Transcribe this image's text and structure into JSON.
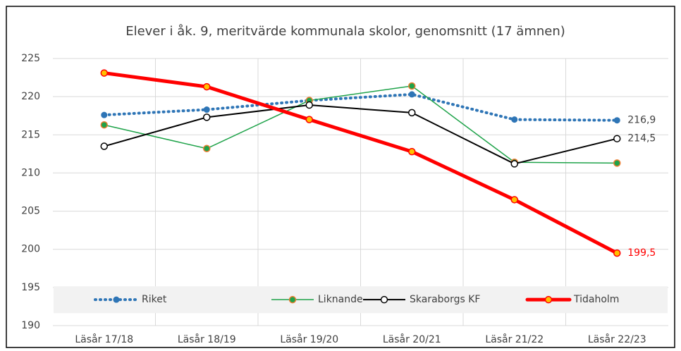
{
  "chart_data": {
    "type": "line",
    "title": "Elever i åk. 9, meritvärde kommunala skolor, genomsnitt (17 ämnen)",
    "categories": [
      "Läsår 17/18",
      "Läsår 18/19",
      "Läsår 19/20",
      "Läsår 20/21",
      "Läsår 21/22",
      "Läsår 22/23"
    ],
    "series": [
      {
        "name": "Riket",
        "color": "#2e75b6",
        "style": "dotted",
        "values": [
          217.6,
          218.3,
          219.5,
          220.3,
          217.0,
          216.9
        ],
        "value_labels": [
          null,
          null,
          null,
          null,
          null,
          "216,9"
        ]
      },
      {
        "name": "Liknande",
        "color": "#1fa34a",
        "style": "solid",
        "values": [
          216.3,
          213.2,
          219.5,
          221.4,
          211.4,
          211.3
        ]
      },
      {
        "name": "Skaraborgs KF",
        "color": "#000000",
        "style": "solid",
        "values": [
          213.5,
          217.3,
          218.9,
          217.9,
          211.2,
          214.5
        ],
        "value_labels": [
          null,
          null,
          null,
          null,
          null,
          "214,5"
        ]
      },
      {
        "name": "Tidaholm",
        "color": "#ff0000",
        "style": "thick",
        "values": [
          223.1,
          221.3,
          217.0,
          212.8,
          206.5,
          199.5
        ],
        "value_labels": [
          null,
          null,
          null,
          null,
          null,
          "199,5"
        ]
      }
    ],
    "ylim": [
      190,
      225
    ],
    "yticks": [
      190,
      195,
      200,
      205,
      210,
      215,
      220,
      225
    ],
    "grid": true,
    "legend": "bottom"
  }
}
